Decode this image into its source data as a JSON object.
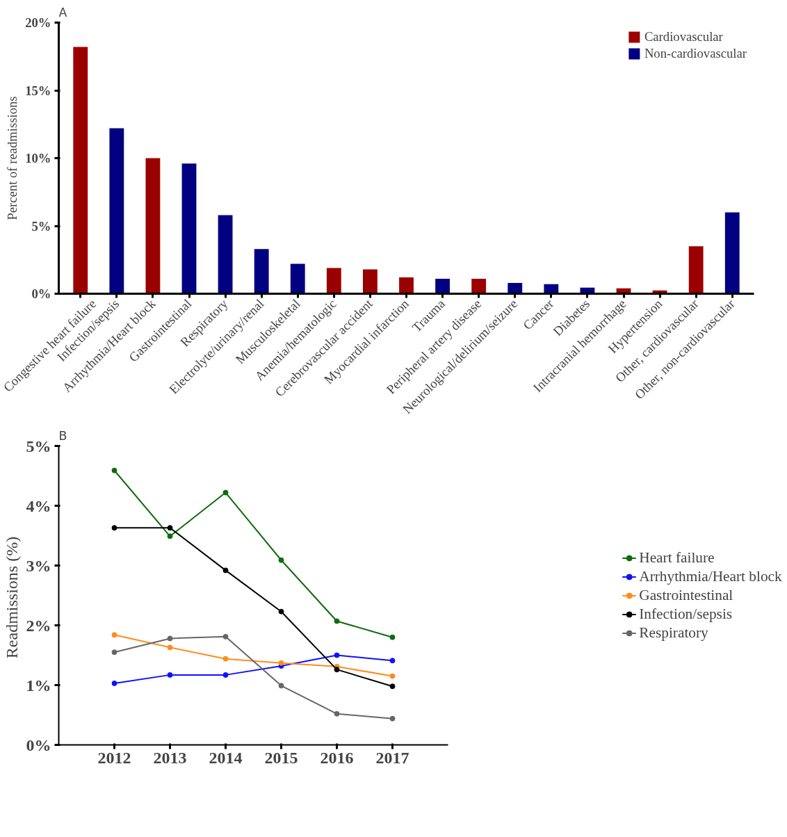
{
  "chart_data": [
    {
      "type": "bar",
      "title": "A",
      "ylabel": "Percent of readmissions",
      "categories": [
        "Congestive heart failure",
        "Infection/sepsis",
        "Arrhythmia/Heart block",
        "Gastrointestinal",
        "Respiratory",
        "Electrolyte/urinary/renal",
        "Musculoskeletal",
        "Anemia/hematologic",
        "Cerebrovascular accident",
        "Myocardial infarction",
        "Trauma",
        "Peripheral artery disease",
        "Neurological/delirium/seizure",
        "Cancer",
        "Diabetes",
        "Intracranial hemorrhage",
        "Hypertension",
        "Other, cardiovascular",
        "Other, non-cardiovascular"
      ],
      "series": [
        {
          "name": "Cardiovascular",
          "color": "#9b0000",
          "values": [
            18.2,
            null,
            10.0,
            null,
            null,
            null,
            null,
            1.9,
            1.8,
            1.2,
            null,
            1.1,
            null,
            null,
            null,
            0.4,
            0.25,
            3.5,
            null
          ]
        },
        {
          "name": "Non-cardiovascular",
          "color": "#000080",
          "values": [
            null,
            12.2,
            null,
            9.6,
            5.8,
            3.3,
            2.2,
            null,
            null,
            null,
            1.1,
            null,
            0.8,
            0.7,
            0.45,
            null,
            null,
            null,
            6.0
          ]
        }
      ],
      "ylim": [
        0,
        20
      ],
      "yticks": [
        {
          "value": 0,
          "label": "0%"
        },
        {
          "value": 5,
          "label": "5%"
        },
        {
          "value": 10,
          "label": "10%"
        },
        {
          "value": 15,
          "label": "15%"
        },
        {
          "value": 20,
          "label": "20%"
        }
      ],
      "grid": false,
      "legend": "top right"
    },
    {
      "type": "line",
      "title": "B",
      "ylabel": "Readmissions  (%)",
      "x": [
        2012,
        2013,
        2014,
        2015,
        2016,
        2017
      ],
      "series": [
        {
          "name": "Heart failure",
          "color": "#0e6b0e",
          "values": [
            4.59,
            3.49,
            4.22,
            3.09,
            2.07,
            1.8
          ]
        },
        {
          "name": "Arrhythmia/Heart block",
          "color": "#1010ff",
          "values": [
            1.03,
            1.17,
            1.17,
            1.32,
            1.5,
            1.41
          ]
        },
        {
          "name": "Gastrointestinal",
          "color": "#ff8c1a",
          "values": [
            1.84,
            1.63,
            1.44,
            1.37,
            1.31,
            1.15
          ]
        },
        {
          "name": "Infection/sepsis",
          "color": "#000000",
          "values": [
            3.63,
            3.63,
            2.92,
            2.23,
            1.26,
            0.98
          ]
        },
        {
          "name": "Respiratory",
          "color": "#666666",
          "values": [
            1.55,
            1.78,
            1.81,
            0.99,
            0.52,
            0.44
          ]
        }
      ],
      "xlim": [
        2011,
        2018
      ],
      "xticks": [
        2012,
        2013,
        2014,
        2015,
        2016,
        2017
      ],
      "ylim": [
        0,
        5
      ],
      "yticks": [
        {
          "value": 0,
          "label": "0%"
        },
        {
          "value": 1,
          "label": "1%"
        },
        {
          "value": 2,
          "label": "2%"
        },
        {
          "value": 3,
          "label": "3%"
        },
        {
          "value": 4,
          "label": "4%"
        },
        {
          "value": 5,
          "label": "5%"
        }
      ],
      "grid": false,
      "legend": "right",
      "marker": "circle",
      "line_style": "solid"
    }
  ]
}
